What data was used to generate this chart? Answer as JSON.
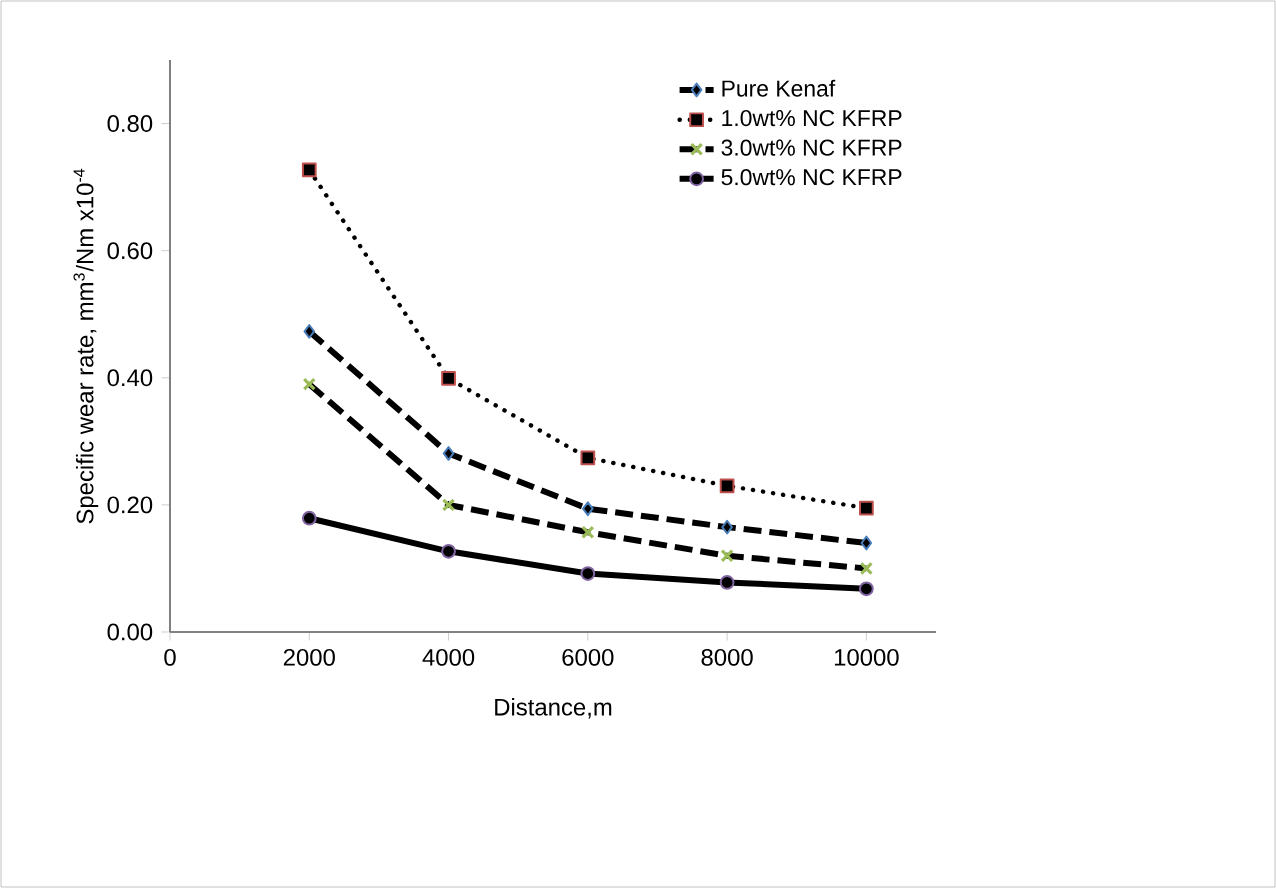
{
  "chart_data": {
    "type": "line",
    "xlabel": "Distance,m",
    "ylabel": "Specific wear rate, mm$^{3}$/Nm x10$^{-4}$",
    "x": [
      2000,
      4000,
      6000,
      8000,
      10000
    ],
    "series": [
      {
        "name": "Pure Kenaf",
        "color": "#4a7ebb",
        "values": [
          0.473,
          0.281,
          0.194,
          0.165,
          0.14
        ],
        "marker": "diamond",
        "line_style": "dashed"
      },
      {
        "name": "1.0wt% NC  KFRP",
        "color": "#c0504d",
        "values": [
          0.727,
          0.399,
          0.274,
          0.23,
          0.195
        ],
        "marker": "square",
        "line_style": "dotted"
      },
      {
        "name": "3.0wt% NC  KFRP",
        "color": "#9bbb59",
        "values": [
          0.39,
          0.2,
          0.157,
          0.12,
          0.1
        ],
        "marker": "cross",
        "line_style": "dashed"
      },
      {
        "name": "5.0wt% NC  KFRP",
        "color": "#8064a2",
        "values": [
          0.179,
          0.127,
          0.092,
          0.078,
          0.068
        ],
        "marker": "circle",
        "line_style": "solid"
      }
    ],
    "xlim": [
      0,
      11000
    ],
    "xticks": [
      0,
      2000,
      4000,
      6000,
      8000,
      10000
    ],
    "ylim": [
      0,
      0.9
    ],
    "yticks": [
      {
        "value": 0,
        "label": "0.00"
      },
      {
        "value": 0.2,
        "label": "0.20"
      },
      {
        "value": 0.4,
        "label": "0.40"
      },
      {
        "value": 0.6,
        "label": "0.60"
      },
      {
        "value": 0.8,
        "label": "0.80"
      }
    ],
    "grid": false,
    "legend": "top right"
  }
}
